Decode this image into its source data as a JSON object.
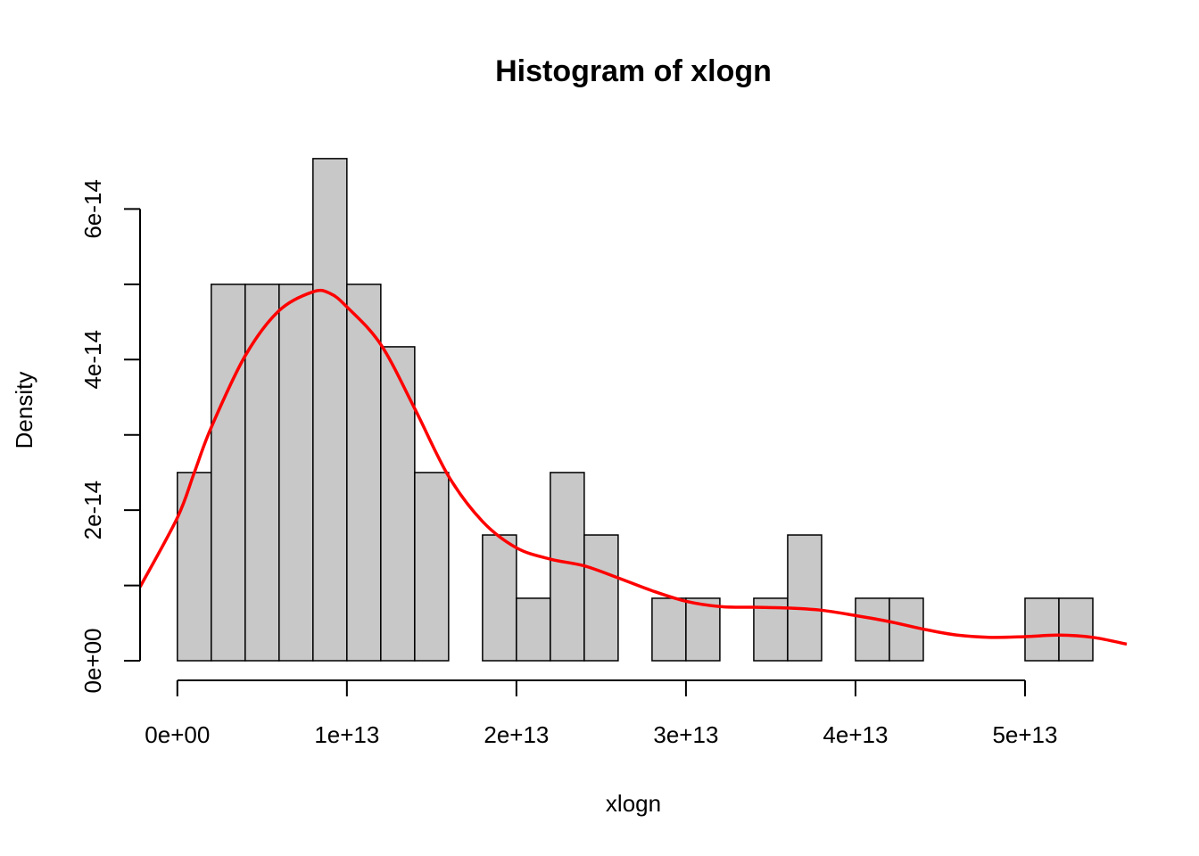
{
  "chart_data": {
    "type": "bar",
    "subtype": "histogram",
    "title": "Histogram of xlogn",
    "xlabel": "xlogn",
    "ylabel": "Density",
    "bar_color": "#c8c8c8",
    "curve_color": "#ff0000",
    "bin_width": 2000000000000.0,
    "bins": [
      {
        "x0": 0,
        "x1": 2000000000000.0,
        "density": 2.5e-14
      },
      {
        "x0": 2000000000000.0,
        "x1": 4000000000000.0,
        "density": 5e-14
      },
      {
        "x0": 4000000000000.0,
        "x1": 6000000000000.0,
        "density": 5e-14
      },
      {
        "x0": 6000000000000.0,
        "x1": 8000000000000.0,
        "density": 5e-14
      },
      {
        "x0": 8000000000000.0,
        "x1": 10000000000000.0,
        "density": 6.67e-14
      },
      {
        "x0": 10000000000000.0,
        "x1": 12000000000000.0,
        "density": 5e-14
      },
      {
        "x0": 12000000000000.0,
        "x1": 14000000000000.0,
        "density": 4.17e-14
      },
      {
        "x0": 14000000000000.0,
        "x1": 16000000000000.0,
        "density": 2.5e-14
      },
      {
        "x0": 16000000000000.0,
        "x1": 18000000000000.0,
        "density": 0
      },
      {
        "x0": 18000000000000.0,
        "x1": 20000000000000.0,
        "density": 1.67e-14
      },
      {
        "x0": 20000000000000.0,
        "x1": 22000000000000.0,
        "density": 8.3e-15
      },
      {
        "x0": 22000000000000.0,
        "x1": 24000000000000.0,
        "density": 2.5e-14
      },
      {
        "x0": 24000000000000.0,
        "x1": 26000000000000.0,
        "density": 1.67e-14
      },
      {
        "x0": 26000000000000.0,
        "x1": 28000000000000.0,
        "density": 0
      },
      {
        "x0": 28000000000000.0,
        "x1": 30000000000000.0,
        "density": 8.3e-15
      },
      {
        "x0": 30000000000000.0,
        "x1": 32000000000000.0,
        "density": 8.3e-15
      },
      {
        "x0": 32000000000000.0,
        "x1": 34000000000000.0,
        "density": 0
      },
      {
        "x0": 34000000000000.0,
        "x1": 36000000000000.0,
        "density": 8.3e-15
      },
      {
        "x0": 36000000000000.0,
        "x1": 38000000000000.0,
        "density": 1.67e-14
      },
      {
        "x0": 38000000000000.0,
        "x1": 40000000000000.0,
        "density": 0
      },
      {
        "x0": 40000000000000.0,
        "x1": 42000000000000.0,
        "density": 8.3e-15
      },
      {
        "x0": 42000000000000.0,
        "x1": 44000000000000.0,
        "density": 8.3e-15
      },
      {
        "x0": 44000000000000.0,
        "x1": 46000000000000.0,
        "density": 0
      },
      {
        "x0": 46000000000000.0,
        "x1": 48000000000000.0,
        "density": 0
      },
      {
        "x0": 48000000000000.0,
        "x1": 50000000000000.0,
        "density": 0
      },
      {
        "x0": 50000000000000.0,
        "x1": 52000000000000.0,
        "density": 8.3e-15
      },
      {
        "x0": 52000000000000.0,
        "x1": 54000000000000.0,
        "density": 8.3e-15
      }
    ],
    "density_curve": {
      "x": [
        -2200000000000.0,
        0,
        1000000000000.0,
        2000000000000.0,
        4000000000000.0,
        6000000000000.0,
        8000000000000.0,
        9000000000000.0,
        10000000000000.0,
        12000000000000.0,
        14000000000000.0,
        16000000000000.0,
        18000000000000.0,
        20000000000000.0,
        22000000000000.0,
        24000000000000.0,
        26000000000000.0,
        28000000000000.0,
        30000000000000.0,
        32000000000000.0,
        34000000000000.0,
        36000000000000.0,
        38000000000000.0,
        40000000000000.0,
        42000000000000.0,
        44000000000000.0,
        46000000000000.0,
        48000000000000.0,
        50000000000000.0,
        52000000000000.0,
        54000000000000.0,
        56000000000000.0
      ],
      "y": [
        9.8e-15,
        1.9e-14,
        2.5e-14,
        3.1e-14,
        4.05e-14,
        4.65e-14,
        4.9e-14,
        4.88e-14,
        4.7e-14,
        4.2e-14,
        3.35e-14,
        2.45e-14,
        1.85e-14,
        1.5e-14,
        1.35e-14,
        1.26e-14,
        1.1e-14,
        9.3e-15,
        7.9e-15,
        7.2e-15,
        7.1e-15,
        7e-15,
        6.7e-15,
        6e-15,
        5.2e-15,
        4.2e-15,
        3.4e-15,
        3.1e-15,
        3.2e-15,
        3.4e-15,
        3.1e-15,
        2.2e-15
      ]
    },
    "x_ticks": [
      0,
      10000000000000.0,
      20000000000000.0,
      30000000000000.0,
      40000000000000.0,
      50000000000000.0
    ],
    "x_tick_labels": [
      "0e+00",
      "1e+13",
      "2e+13",
      "3e+13",
      "4e+13",
      "5e+13"
    ],
    "y_ticks": [
      0,
      1e-14,
      2e-14,
      3e-14,
      4e-14,
      5e-14,
      6e-14
    ],
    "y_tick_labels": [
      "0e+00",
      "",
      "2e-14",
      "",
      "4e-14",
      "",
      "6e-14"
    ],
    "xlim": [
      -2200000000000.0,
      56000000000000.0
    ],
    "ylim": [
      0,
      7e-14
    ],
    "grid": false,
    "legend": "none"
  }
}
